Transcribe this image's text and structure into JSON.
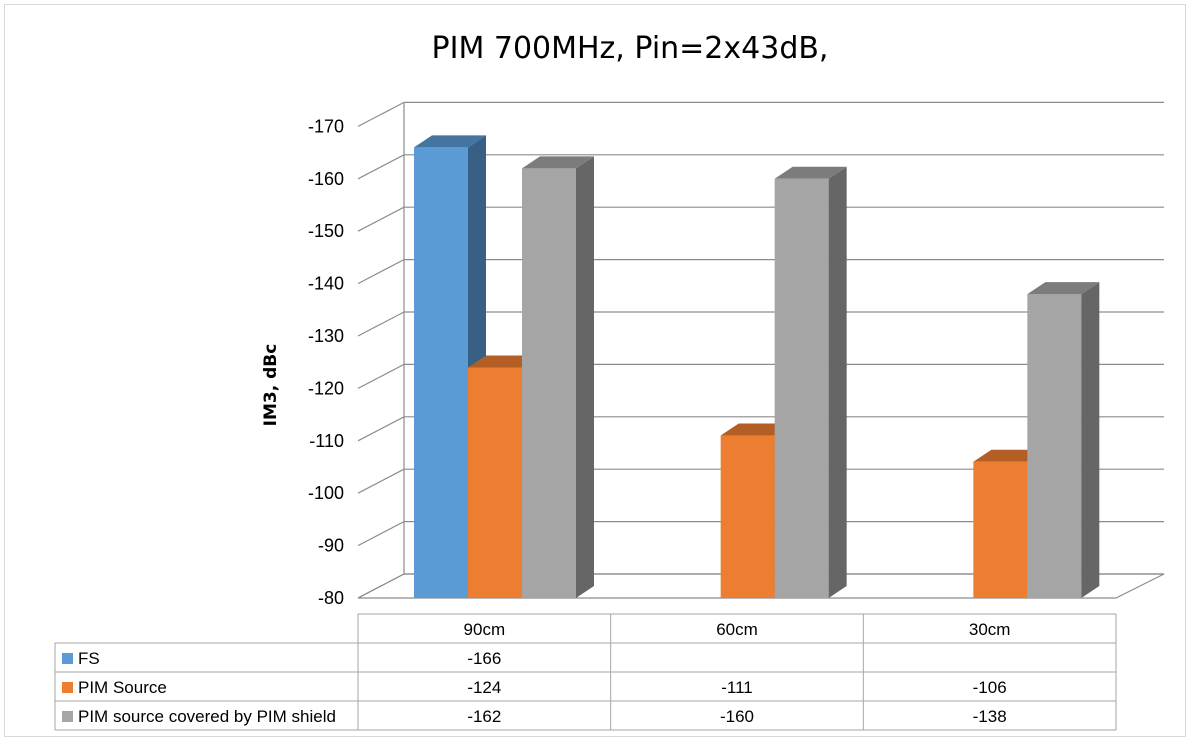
{
  "chart_data": {
    "type": "bar",
    "title": "PIM 700MHz, Pin=2x43dB,",
    "ylabel": "IM3, dBc",
    "xlabel": "",
    "categories": [
      "90cm",
      "60cm",
      "30cm"
    ],
    "y_ticks": [
      "-170",
      "-160",
      "-150",
      "-140",
      "-130",
      "-120",
      "-110",
      "-100",
      "-90",
      "-80"
    ],
    "ylim": [
      -80,
      -170
    ],
    "grid": true,
    "style": "3d-column with data table",
    "series": [
      {
        "name": "FS",
        "values": [
          -166,
          null,
          null
        ],
        "labels": [
          "-166",
          "",
          ""
        ],
        "color": "#5b9bd5"
      },
      {
        "name": "PIM Source",
        "values": [
          -124,
          -111,
          -106
        ],
        "labels": [
          "-124",
          "-111",
          "-106"
        ],
        "color": "#ed7d31"
      },
      {
        "name": "PIM source covered by PIM shield",
        "values": [
          -162,
          -160,
          -138
        ],
        "labels": [
          "-162",
          "-160",
          "-138"
        ],
        "color": "#a5a5a5"
      }
    ]
  }
}
